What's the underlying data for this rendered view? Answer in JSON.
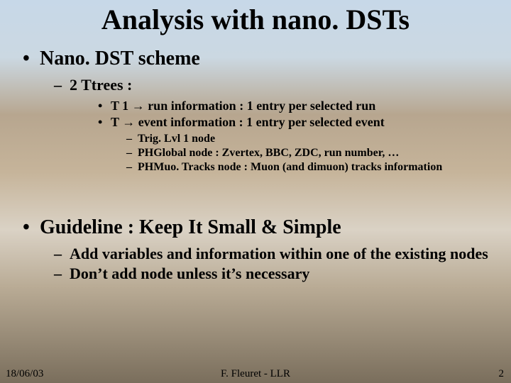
{
  "title": "Analysis with nano. DSTs",
  "sections": [
    {
      "heading": "Nano. DST scheme",
      "sub": [
        {
          "text": "2 Ttrees :",
          "items": [
            {
              "prefix": "T 1 ",
              "suffix": " run information : 1 entry per selected run"
            },
            {
              "prefix": "T ",
              "suffix": " event information : 1 entry per selected event",
              "details": [
                "Trig. Lvl 1 node",
                "PHGlobal node : Zvertex, BBC, ZDC, run number, …",
                "PHMuo. Tracks node : Muon (and dimuon) tracks information"
              ]
            }
          ]
        }
      ]
    },
    {
      "heading": "Guideline : Keep It Small & Simple",
      "sub": [
        {
          "text": "Add variables and information within one of the existing nodes"
        },
        {
          "text": "Don’t add node unless it’s necessary"
        }
      ]
    }
  ],
  "footer": {
    "date": "18/06/03",
    "center": "F. Fleuret - LLR",
    "page": "2"
  },
  "arrow_glyph": "→"
}
